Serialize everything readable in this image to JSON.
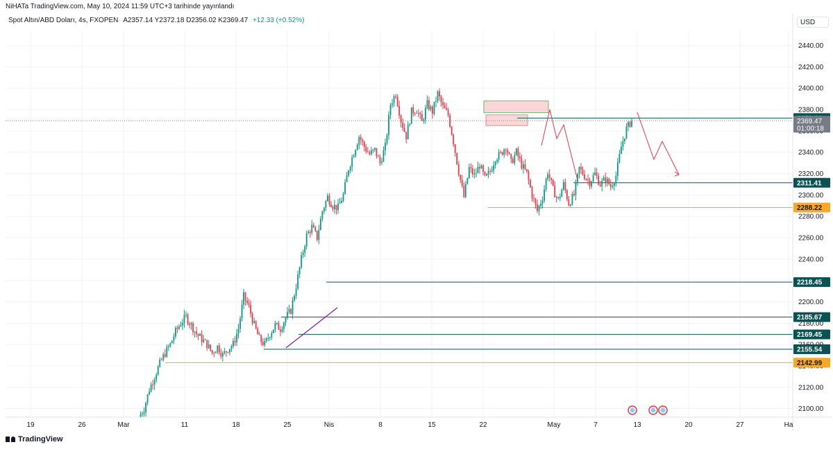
{
  "header": {
    "published": "NiHATa TradingView.com, May 10, 2024 11:59 UTC+3 tarihinde yayınlandı",
    "symbol": "Spot Altın/ABD Doları, 4s, FXOPEN",
    "ohlc": "A2357.14 Y2372.18 D2356.02 K2369.47",
    "change": "+12.33 (+0.52%)"
  },
  "currency": "USD",
  "brand": "TradingView",
  "colors": {
    "up": "#089981",
    "down": "#f23645",
    "level_line": "#0b5353",
    "orange_line": "#f9a825",
    "annotation": "#f23645",
    "trend": "#7b1fa2"
  },
  "chart_data": {
    "type": "candlestick",
    "timeframe": "4s",
    "x_ticks": [
      "19",
      "26",
      "Mar",
      "11",
      "18",
      "25",
      "Nis",
      "8",
      "15",
      "22",
      "May",
      "7",
      "13",
      "20",
      "27",
      "Ha"
    ],
    "y_ticks": [
      2100,
      2120,
      2140,
      2160,
      2180,
      2200,
      2220,
      2240,
      2260,
      2280,
      2300,
      2320,
      2340,
      2360,
      2380,
      2400,
      2420,
      2440
    ],
    "ylim": [
      2092,
      2454
    ],
    "current_price": 2369.47,
    "countdown": "01:00:18",
    "horizontal_levels": [
      {
        "value": 2372.01,
        "color": "#0b5353",
        "label": "2372.01"
      },
      {
        "value": 2311.41,
        "color": "#0b5353",
        "label": "2311.41"
      },
      {
        "value": 2288.22,
        "color": "#f9a825",
        "label": "2288.22"
      },
      {
        "value": 2218.45,
        "color": "#0b5353",
        "label": "2218.45"
      },
      {
        "value": 2185.67,
        "color": "#0b5353",
        "label": "2185.67"
      },
      {
        "value": 2169.45,
        "color": "#0b5353",
        "label": "2169.45"
      },
      {
        "value": 2155.54,
        "color": "#0b5353",
        "label": "2155.54"
      },
      {
        "value": 2142.99,
        "color": "#f9a825",
        "label": "2142.99"
      }
    ],
    "supply_zones": [
      {
        "top": 2388,
        "bottom": 2377
      },
      {
        "top": 2375,
        "bottom": 2365
      }
    ],
    "price_path": [
      [
        0,
        2092
      ],
      [
        3,
        2100
      ],
      [
        6,
        2118
      ],
      [
        9,
        2130
      ],
      [
        12,
        2142
      ],
      [
        15,
        2152
      ],
      [
        18,
        2160
      ],
      [
        21,
        2172
      ],
      [
        24,
        2180
      ],
      [
        27,
        2186
      ],
      [
        30,
        2178
      ],
      [
        33,
        2170
      ],
      [
        36,
        2165
      ],
      [
        39,
        2160
      ],
      [
        42,
        2152
      ],
      [
        45,
        2158
      ],
      [
        48,
        2150
      ],
      [
        51,
        2156
      ],
      [
        54,
        2160
      ],
      [
        57,
        2175
      ],
      [
        60,
        2205
      ],
      [
        63,
        2195
      ],
      [
        66,
        2178
      ],
      [
        69,
        2165
      ],
      [
        72,
        2160
      ],
      [
        75,
        2170
      ],
      [
        78,
        2178
      ],
      [
        81,
        2175
      ],
      [
        84,
        2185
      ],
      [
        87,
        2192
      ],
      [
        90,
        2215
      ],
      [
        93,
        2240
      ],
      [
        96,
        2262
      ],
      [
        99,
        2270
      ],
      [
        102,
        2260
      ],
      [
        105,
        2285
      ],
      [
        108,
        2298
      ],
      [
        111,
        2290
      ],
      [
        114,
        2288
      ],
      [
        117,
        2300
      ],
      [
        120,
        2325
      ],
      [
        123,
        2340
      ],
      [
        126,
        2355
      ],
      [
        129,
        2345
      ],
      [
        132,
        2338
      ],
      [
        135,
        2342
      ],
      [
        138,
        2330
      ],
      [
        141,
        2345
      ],
      [
        144,
        2385
      ],
      [
        147,
        2395
      ],
      [
        150,
        2370
      ],
      [
        153,
        2355
      ],
      [
        156,
        2378
      ],
      [
        159,
        2380
      ],
      [
        162,
        2368
      ],
      [
        165,
        2385
      ],
      [
        168,
        2378
      ],
      [
        171,
        2395
      ],
      [
        174,
        2382
      ],
      [
        177,
        2375
      ],
      [
        180,
        2350
      ],
      [
        183,
        2322
      ],
      [
        186,
        2298
      ],
      [
        189,
        2325
      ],
      [
        192,
        2318
      ],
      [
        195,
        2328
      ],
      [
        198,
        2315
      ],
      [
        201,
        2322
      ],
      [
        204,
        2335
      ],
      [
        207,
        2338
      ],
      [
        210,
        2346
      ],
      [
        213,
        2330
      ],
      [
        216,
        2340
      ],
      [
        219,
        2328
      ],
      [
        222,
        2320
      ],
      [
        225,
        2300
      ],
      [
        228,
        2285
      ],
      [
        231,
        2298
      ],
      [
        234,
        2322
      ],
      [
        237,
        2305
      ],
      [
        240,
        2295
      ],
      [
        243,
        2310
      ],
      [
        246,
        2292
      ],
      [
        249,
        2300
      ],
      [
        252,
        2325
      ],
      [
        255,
        2318
      ],
      [
        258,
        2312
      ],
      [
        261,
        2320
      ],
      [
        264,
        2310
      ],
      [
        267,
        2315
      ],
      [
        270,
        2308
      ],
      [
        273,
        2318
      ],
      [
        276,
        2345
      ],
      [
        279,
        2362
      ],
      [
        282,
        2369.47
      ]
    ]
  }
}
